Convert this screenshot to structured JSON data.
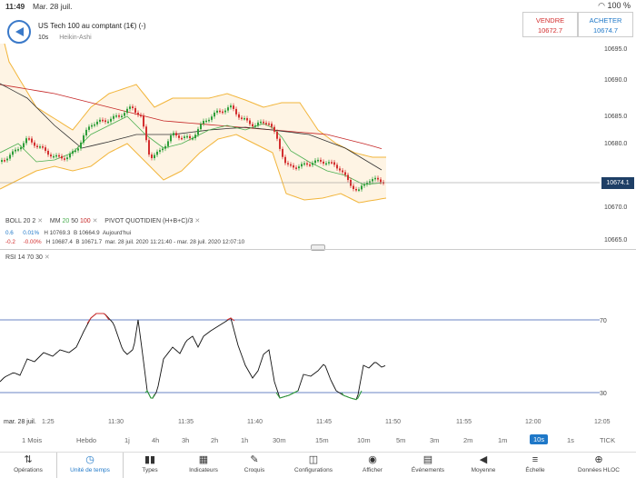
{
  "status_bar": {
    "time": "11:49",
    "date": "Mar. 28 juil.",
    "battery": "100 %"
  },
  "header": {
    "instrument": "US Tech 100 au comptant (1€) (-)",
    "interval": "10s",
    "chart_style": "Heikin-Ashi"
  },
  "prices": {
    "sell_label": "VENDRE",
    "sell_value": "10672.7",
    "buy_label": "ACHETER",
    "buy_value": "10674.7",
    "current": "10674.1"
  },
  "price_axis": [
    "10695.0",
    "10690.0",
    "10685.0",
    "10680.0",
    "10670.0",
    "10665.0"
  ],
  "indicators": {
    "boll": {
      "name": "BOLL",
      "p1": "20",
      "p2": "2"
    },
    "mm": {
      "name": "MM",
      "p1": "20",
      "p2": "50",
      "p3": "100"
    },
    "pivot": {
      "name": "PIVOT",
      "p1": "QUOTIDIEN",
      "p2": "(H+B+C)/3"
    },
    "row1": {
      "change": "0.6",
      "pct": "0.01%",
      "high": "H 10769.3",
      "low": "B 10664.9",
      "period": "Aujourd'hui"
    },
    "row2": {
      "change": "-0.2",
      "pct": "-0.00%",
      "high": "H 10687.4",
      "low": "B 10671.7",
      "range": "mar. 28 juil. 2020 11:21:40 - mar. 28 juil. 2020 12:07:10"
    },
    "rsi": {
      "name": "RSI",
      "p1": "14",
      "p2": "70",
      "p3": "30"
    }
  },
  "rsi_levels": [
    "70",
    "30"
  ],
  "time_axis": [
    "mar. 28 juil.",
    "1:25",
    "11:30",
    "11:35",
    "11:40",
    "11:45",
    "11:50",
    "11:55",
    "12:00",
    "12:05"
  ],
  "timeframes": [
    "1 Mois",
    "Hebdo",
    "1j",
    "4h",
    "3h",
    "2h",
    "1h",
    "30m",
    "15m",
    "10m",
    "5m",
    "3m",
    "2m",
    "1m",
    "10s",
    "1s",
    "TICK"
  ],
  "selected_timeframe": "10s",
  "toolbar": [
    {
      "label": "Opérations",
      "icon": "arrows-updown-icon"
    },
    {
      "label": "Unité de temps",
      "icon": "clock-icon"
    },
    {
      "label": "Types",
      "icon": "candles-icon"
    },
    {
      "label": "Indicateurs",
      "icon": "indicators-icon"
    },
    {
      "label": "Croquis",
      "icon": "pencil-icon"
    },
    {
      "label": "Configurations",
      "icon": "layout-icon"
    },
    {
      "label": "Afficher",
      "icon": "eye-icon"
    },
    {
      "label": "Événements",
      "icon": "events-icon"
    },
    {
      "label": "Moyenne",
      "icon": "megaphone-icon"
    },
    {
      "label": "Échelle",
      "icon": "scale-icon"
    },
    {
      "label": "Données HLOC",
      "icon": "crosshair-icon"
    }
  ],
  "selected_tool": "Unité de temps"
}
